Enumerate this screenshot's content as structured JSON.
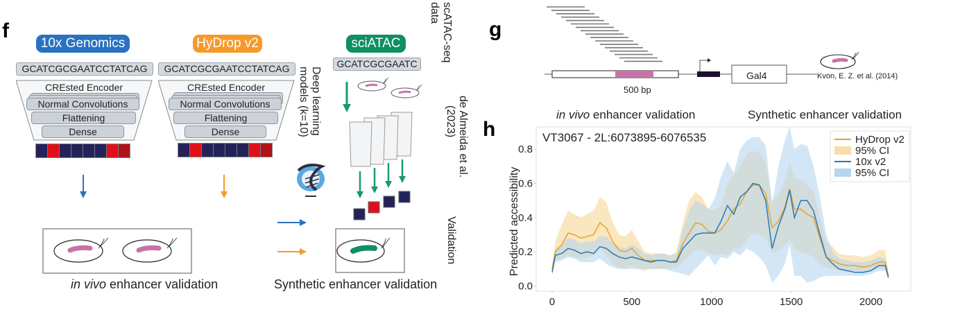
{
  "panel_f": {
    "letter": "f",
    "platforms": [
      {
        "name": "10x Genomics",
        "color": "#2a72c0",
        "sequence": "GCATCGCGAATCCTATCAG",
        "arrow_color": "#2a72c0"
      },
      {
        "name": "HyDrop v2",
        "color": "#f59a2a",
        "sequence": "GCATCGCGAATCCTATCAG",
        "arrow_color": "#f59a2a"
      },
      {
        "name": "sciATAC",
        "color": "#0f8f62",
        "sequence": "GCATCGCGAATC",
        "arrow_color": "#1a9a6a"
      }
    ],
    "encoder": {
      "title": "CREsted Encoder",
      "layers": [
        "Normal Convolutions",
        "Flattening",
        "Dense"
      ]
    },
    "output_cells_colors": [
      "#23235a",
      "#e0101a",
      "#23235a",
      "#23235a",
      "#23235a",
      "#23235a",
      "#e0101a",
      "#b0121a"
    ],
    "sciatac_output_colors": [
      "#23235a",
      "#e0101a",
      "#23235a",
      "#23235a"
    ],
    "vertical_labels": {
      "models": [
        "Deep learning",
        "models (k=10)"
      ],
      "data": [
        "scATAC-seq",
        "data"
      ],
      "citation": [
        "de Almeida et al.",
        "(2023)"
      ],
      "validation": "Validation"
    },
    "captions": {
      "in_vivo_italic": "in vivo",
      "in_vivo_rest": " enhancer validation",
      "synthetic": "Synthetic enhancer validation"
    },
    "embryo_colors": {
      "pink": "#c872a8",
      "green": "#0f8f62"
    }
  },
  "panel_g": {
    "letter": "g",
    "tile_count": 17,
    "enhancer_label": "500 bp",
    "gene_label": "Gal4",
    "citation": "Kvon, E. Z. et al. (2014)",
    "enhancer_color": "#c872a8",
    "promoter_color": "#1e0f2e"
  },
  "panel_h": {
    "letter": "h",
    "header_left_italic": "in vivo",
    "header_left_rest": " enhancer validation",
    "header_right": "Synthetic enhancer validation"
  },
  "chart_data": {
    "type": "line",
    "title": "VT3067 - 2L:6073895-6076535",
    "xlabel": "",
    "ylabel": "Predicted accessibility",
    "xlim": [
      -100,
      2250
    ],
    "ylim": [
      -0.03,
      0.93
    ],
    "xticks": [
      0,
      500,
      1000,
      1500,
      2000
    ],
    "yticks": [
      0.0,
      0.2,
      0.4,
      0.6,
      0.8
    ],
    "ytick_labels": [
      "0.0",
      "0.2",
      "0.4",
      "0.6",
      "0.8"
    ],
    "grid": false,
    "legend_position": "top-right",
    "legend": [
      "HyDrop v2",
      "95% CI",
      "10x v2",
      "95% CI"
    ],
    "x": [
      0,
      20,
      60,
      100,
      140,
      180,
      220,
      260,
      300,
      340,
      380,
      420,
      460,
      500,
      540,
      580,
      620,
      660,
      700,
      740,
      780,
      820,
      860,
      900,
      940,
      980,
      1020,
      1060,
      1100,
      1140,
      1180,
      1220,
      1260,
      1300,
      1340,
      1380,
      1420,
      1460,
      1490,
      1520,
      1560,
      1600,
      1640,
      1680,
      1720,
      1760,
      1800,
      1850,
      1900,
      1950,
      2000,
      2050,
      2090,
      2110
    ],
    "series": [
      {
        "name": "HyDrop v2",
        "color": "#e3a528",
        "band_color": "#f8deaa",
        "values": [
          0.1,
          0.2,
          0.24,
          0.31,
          0.3,
          0.28,
          0.29,
          0.3,
          0.37,
          0.34,
          0.26,
          0.21,
          0.2,
          0.22,
          0.18,
          0.15,
          0.15,
          0.15,
          0.15,
          0.14,
          0.15,
          0.25,
          0.31,
          0.37,
          0.36,
          0.32,
          0.31,
          0.33,
          0.38,
          0.45,
          0.48,
          0.55,
          0.59,
          0.59,
          0.54,
          0.34,
          0.38,
          0.46,
          0.57,
          0.45,
          0.45,
          0.42,
          0.4,
          0.28,
          0.17,
          0.15,
          0.13,
          0.12,
          0.12,
          0.11,
          0.12,
          0.14,
          0.14,
          0.06
        ],
        "ci_lower": [
          0.08,
          0.15,
          0.16,
          0.18,
          0.17,
          0.16,
          0.17,
          0.18,
          0.22,
          0.18,
          0.13,
          0.11,
          0.1,
          0.12,
          0.1,
          0.09,
          0.1,
          0.1,
          0.1,
          0.1,
          0.11,
          0.14,
          0.18,
          0.21,
          0.21,
          0.19,
          0.18,
          0.19,
          0.18,
          0.22,
          0.22,
          0.27,
          0.31,
          0.3,
          0.28,
          0.19,
          0.21,
          0.24,
          0.27,
          0.22,
          0.2,
          0.19,
          0.17,
          0.13,
          0.11,
          0.1,
          0.09,
          0.09,
          0.09,
          0.08,
          0.09,
          0.1,
          0.1,
          0.05
        ],
        "ci_upper": [
          0.12,
          0.26,
          0.36,
          0.44,
          0.42,
          0.4,
          0.42,
          0.44,
          0.52,
          0.49,
          0.37,
          0.3,
          0.29,
          0.33,
          0.26,
          0.2,
          0.19,
          0.19,
          0.19,
          0.18,
          0.2,
          0.37,
          0.5,
          0.55,
          0.52,
          0.45,
          0.44,
          0.47,
          0.6,
          0.65,
          0.7,
          0.77,
          0.79,
          0.78,
          0.72,
          0.5,
          0.53,
          0.62,
          0.72,
          0.63,
          0.62,
          0.59,
          0.55,
          0.4,
          0.26,
          0.23,
          0.19,
          0.18,
          0.18,
          0.17,
          0.18,
          0.21,
          0.21,
          0.08
        ]
      },
      {
        "name": "10x v2",
        "color": "#2878b8",
        "band_color": "#b5d6ee",
        "values": [
          0.08,
          0.18,
          0.19,
          0.22,
          0.21,
          0.19,
          0.2,
          0.19,
          0.23,
          0.22,
          0.19,
          0.17,
          0.16,
          0.17,
          0.16,
          0.15,
          0.14,
          0.15,
          0.15,
          0.14,
          0.14,
          0.22,
          0.26,
          0.3,
          0.31,
          0.31,
          0.31,
          0.38,
          0.47,
          0.42,
          0.52,
          0.55,
          0.6,
          0.59,
          0.5,
          0.22,
          0.35,
          0.45,
          0.56,
          0.4,
          0.5,
          0.5,
          0.44,
          0.3,
          0.17,
          0.13,
          0.1,
          0.09,
          0.08,
          0.08,
          0.09,
          0.12,
          0.12,
          0.05
        ],
        "ci_lower": [
          0.06,
          0.14,
          0.15,
          0.17,
          0.16,
          0.14,
          0.14,
          0.14,
          0.16,
          0.13,
          0.11,
          0.1,
          0.1,
          0.1,
          0.1,
          0.1,
          0.1,
          0.1,
          0.1,
          0.09,
          0.08,
          0.07,
          0.06,
          0.1,
          0.14,
          0.18,
          0.12,
          0.17,
          0.16,
          0.2,
          0.18,
          0.22,
          0.2,
          0.17,
          0.12,
          0.02,
          0.06,
          0.13,
          0.24,
          0.06,
          0.06,
          0.02,
          0.03,
          0.05,
          0.06,
          0.06,
          0.06,
          0.06,
          0.06,
          0.06,
          0.07,
          0.09,
          0.09,
          0.04
        ],
        "ci_upper": [
          0.1,
          0.22,
          0.24,
          0.28,
          0.27,
          0.25,
          0.26,
          0.26,
          0.29,
          0.29,
          0.25,
          0.23,
          0.22,
          0.24,
          0.22,
          0.19,
          0.18,
          0.19,
          0.19,
          0.18,
          0.19,
          0.33,
          0.44,
          0.5,
          0.48,
          0.45,
          0.51,
          0.64,
          0.73,
          0.66,
          0.8,
          0.85,
          0.87,
          0.87,
          0.82,
          0.48,
          0.7,
          0.85,
          0.93,
          0.8,
          0.83,
          0.82,
          0.7,
          0.52,
          0.3,
          0.2,
          0.16,
          0.15,
          0.14,
          0.14,
          0.15,
          0.17,
          0.16,
          0.07
        ]
      }
    ]
  }
}
